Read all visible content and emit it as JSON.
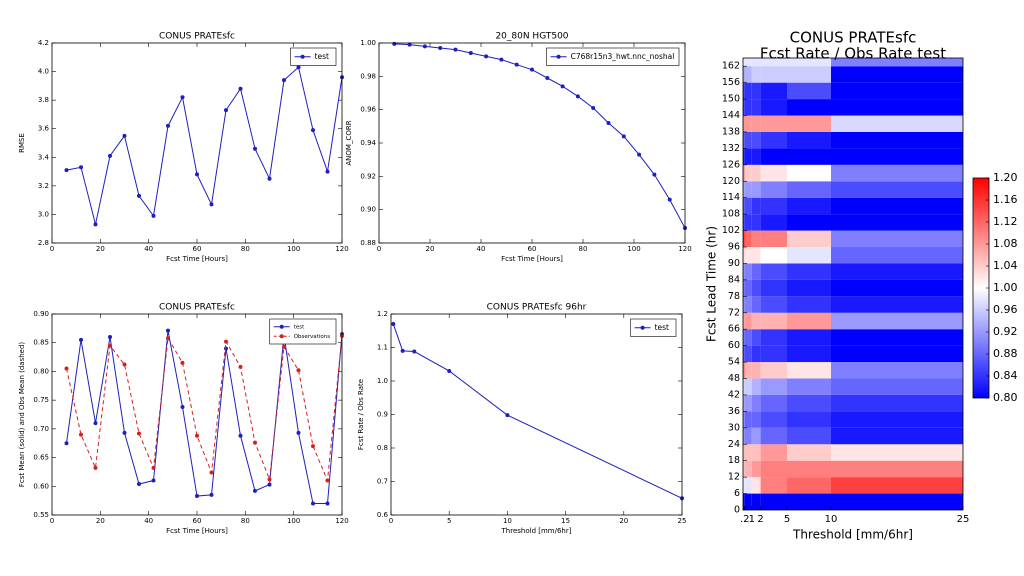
{
  "chart_data": [
    {
      "type": "line",
      "title": "CONUS PRATEsfc",
      "xlabel": "Fcst Time [Hours]",
      "ylabel": "RMSE",
      "x": [
        6,
        12,
        18,
        24,
        30,
        36,
        42,
        48,
        54,
        60,
        66,
        72,
        78,
        84,
        90,
        96,
        102,
        108,
        114,
        120
      ],
      "xlim": [
        0,
        120
      ],
      "xticks": [
        0,
        20,
        40,
        60,
        80,
        100,
        120
      ],
      "ylim": [
        2.8,
        4.2
      ],
      "yticks": [
        2.8,
        3.2,
        3.4,
        3.6,
        3.8,
        {
          "value": 3.0,
          "label": "3.0"
        },
        {
          "value": 4.0,
          "label": "4.0"
        },
        4.2
      ],
      "legend": "upper right",
      "series": [
        {
          "name": "test",
          "color": "#1f1fbf",
          "linestyle": "solid",
          "values": [
            3.31,
            3.33,
            2.93,
            3.41,
            3.55,
            3.13,
            2.99,
            3.62,
            3.82,
            3.28,
            3.07,
            3.73,
            3.88,
            3.46,
            3.25,
            3.94,
            4.03,
            3.59,
            3.3,
            3.96
          ]
        }
      ]
    },
    {
      "type": "line",
      "title": "20_80N HGT500",
      "xlabel": "Fcst Time [Hours]",
      "ylabel": "ANOM_CORR",
      "x": [
        6,
        12,
        18,
        24,
        30,
        36,
        42,
        48,
        54,
        60,
        66,
        72,
        78,
        84,
        90,
        96,
        102,
        108,
        114,
        120
      ],
      "xlim": [
        0,
        120
      ],
      "xticks": [
        0,
        20,
        40,
        60,
        80,
        100,
        120
      ],
      "ylim": [
        0.88,
        1.0
      ],
      "yticks": [
        0.88,
        {
          "value": 0.9,
          "label": "0.90"
        },
        0.92,
        0.94,
        0.96,
        0.98,
        {
          "value": 1.0,
          "label": "1.00"
        }
      ],
      "legend": "upper right",
      "series": [
        {
          "name": "C768r15n3_hwt.nnc_noshal",
          "color": "#1f1fbf",
          "linestyle": "solid",
          "values": [
            0.9995,
            0.999,
            0.998,
            0.997,
            0.996,
            0.994,
            0.992,
            0.99,
            0.987,
            0.984,
            0.979,
            0.974,
            0.968,
            0.961,
            0.952,
            0.944,
            0.933,
            0.921,
            0.906,
            0.889
          ]
        }
      ]
    },
    {
      "type": "line",
      "title": "CONUS PRATEsfc",
      "xlabel": "Fcst Time [Hours]",
      "ylabel": "Fcst Mean (solid) and Obs Mean (dashed)",
      "x": [
        6,
        12,
        18,
        24,
        30,
        36,
        42,
        48,
        54,
        60,
        66,
        72,
        78,
        84,
        90,
        96,
        102,
        108,
        114,
        120
      ],
      "xlim": [
        0,
        120
      ],
      "xticks": [
        0,
        20,
        40,
        60,
        80,
        100,
        120
      ],
      "ylim": [
        0.55,
        0.9
      ],
      "yticks": [
        0.55,
        {
          "value": 0.6,
          "label": "0.60"
        },
        0.65,
        {
          "value": 0.7,
          "label": "0.70"
        },
        0.75,
        {
          "value": 0.8,
          "label": "0.80"
        },
        0.85,
        {
          "value": 0.9,
          "label": "0.90"
        }
      ],
      "legend": "upper right",
      "series": [
        {
          "name": "test",
          "color": "#1f1fbf",
          "linestyle": "solid",
          "values": [
            0.675,
            0.855,
            0.71,
            0.86,
            0.693,
            0.604,
            0.61,
            0.871,
            0.738,
            0.583,
            0.585,
            0.84,
            0.688,
            0.592,
            0.603,
            0.863,
            0.693,
            0.57,
            0.57,
            0.865
          ]
        },
        {
          "name": "Observations",
          "color": "#d42020",
          "linestyle": "dashed",
          "values": [
            0.805,
            0.69,
            0.632,
            0.845,
            0.812,
            0.692,
            0.632,
            0.858,
            0.815,
            0.688,
            0.624,
            0.852,
            0.808,
            0.676,
            0.612,
            0.843,
            0.802,
            0.67,
            0.61,
            0.862
          ]
        }
      ]
    },
    {
      "type": "line",
      "title": "CONUS PRATEsfc 96hr",
      "xlabel": "Threshold [mm/6hr]",
      "ylabel": "Fcst Rate / Obs Rate",
      "x": [
        0.2,
        1,
        2,
        5,
        10,
        25
      ],
      "xlim": [
        0,
        25
      ],
      "xticks": [
        0,
        5,
        10,
        15,
        20,
        25
      ],
      "ylim": [
        0.6,
        1.2
      ],
      "yticks": [
        0.6,
        0.7,
        0.8,
        0.9,
        {
          "value": 1.0,
          "label": "1.0"
        },
        1.1,
        1.2
      ],
      "legend": "upper right",
      "series": [
        {
          "name": "test",
          "color": "#1f1fbf",
          "linestyle": "solid",
          "values": [
            1.17,
            1.09,
            1.088,
            1.03,
            0.898,
            0.65
          ]
        }
      ]
    },
    {
      "type": "heatmap",
      "title": "CONUS PRATEsfc",
      "subtitle": "Fcst Rate / Obs Rate test",
      "xlabel": "Threshold [mm/6hr]",
      "ylabel": "Fcst Lead Time (hr)",
      "x_edges": [
        0,
        0.2,
        1,
        2,
        5,
        10,
        25
      ],
      "y_edges": [
        0,
        6,
        12,
        18,
        24,
        30,
        36,
        42,
        48,
        54,
        60,
        66,
        72,
        78,
        84,
        90,
        96,
        102,
        108,
        114,
        120,
        126,
        132,
        138,
        144,
        150,
        156,
        162,
        165
      ],
      "xlim": [
        0,
        25
      ],
      "xticks": [
        {
          "value": 0.2,
          "label": ".2"
        },
        1,
        2,
        5,
        10,
        25
      ],
      "ylim": [
        0,
        165
      ],
      "yticks": [
        0,
        6,
        12,
        18,
        24,
        30,
        36,
        42,
        48,
        54,
        60,
        66,
        72,
        78,
        84,
        90,
        96,
        102,
        108,
        114,
        120,
        126,
        132,
        138,
        144,
        150,
        156,
        162
      ],
      "clim": [
        0.8,
        1.2
      ],
      "cticks": [
        {
          "value": 0.8,
          "label": "0.80"
        },
        0.84,
        0.88,
        0.92,
        0.96,
        {
          "value": 1.0,
          "label": "1.00"
        },
        1.04,
        1.08,
        1.12,
        1.16,
        {
          "value": 1.2,
          "label": "1.20"
        }
      ],
      "colormap": "bwr",
      "z": [
        [
          0.8,
          0.8,
          0.8,
          0.8,
          0.8,
          0.8
        ],
        [
          0.98,
          0.98,
          1.02,
          1.1,
          1.12,
          1.15
        ],
        [
          1.06,
          1.06,
          1.08,
          1.1,
          1.1,
          1.1
        ],
        [
          1.06,
          1.05,
          1.05,
          1.08,
          1.04,
          1.02
        ],
        [
          0.9,
          0.9,
          0.92,
          0.88,
          0.86,
          0.82
        ],
        [
          0.9,
          0.88,
          0.88,
          0.86,
          0.84,
          0.82
        ],
        [
          0.92,
          0.92,
          0.9,
          0.88,
          0.86,
          0.84
        ],
        [
          0.96,
          0.96,
          0.94,
          0.92,
          0.9,
          0.88
        ],
        [
          1.12,
          1.06,
          1.06,
          1.04,
          1.02,
          0.9
        ],
        [
          0.86,
          0.86,
          0.84,
          0.84,
          0.82,
          0.8
        ],
        [
          0.88,
          0.88,
          0.86,
          0.84,
          0.82,
          0.8
        ],
        [
          1.08,
          1.08,
          1.06,
          1.06,
          1.08,
          0.92
        ],
        [
          0.9,
          0.9,
          0.88,
          0.86,
          0.84,
          0.82
        ],
        [
          0.88,
          0.88,
          0.86,
          0.84,
          0.82,
          0.8
        ],
        [
          0.9,
          0.9,
          0.88,
          0.86,
          0.84,
          0.82
        ],
        [
          1.04,
          1.02,
          1.02,
          1.0,
          0.98,
          0.88
        ],
        [
          1.18,
          1.12,
          1.1,
          1.1,
          1.04,
          0.9
        ],
        [
          0.84,
          0.84,
          0.84,
          0.82,
          0.8,
          0.8
        ],
        [
          0.86,
          0.86,
          0.84,
          0.84,
          0.82,
          0.8
        ],
        [
          0.92,
          0.92,
          0.92,
          0.9,
          0.88,
          0.86
        ],
        [
          1.1,
          1.04,
          1.04,
          1.02,
          1.0,
          0.9
        ],
        [
          0.82,
          0.82,
          0.82,
          0.8,
          0.8,
          0.8
        ],
        [
          0.86,
          0.86,
          0.86,
          0.84,
          0.82,
          0.8
        ],
        [
          1.1,
          1.08,
          1.08,
          1.08,
          1.08,
          0.97
        ],
        [
          0.84,
          0.84,
          0.84,
          0.82,
          0.8,
          0.8
        ],
        [
          0.84,
          0.84,
          0.84,
          0.82,
          0.86,
          0.8
        ],
        [
          0.92,
          0.94,
          0.96,
          0.96,
          0.96,
          0.8
        ],
        [
          0.98,
          0.98,
          0.98,
          0.98,
          0.98,
          0.9
        ]
      ]
    }
  ]
}
